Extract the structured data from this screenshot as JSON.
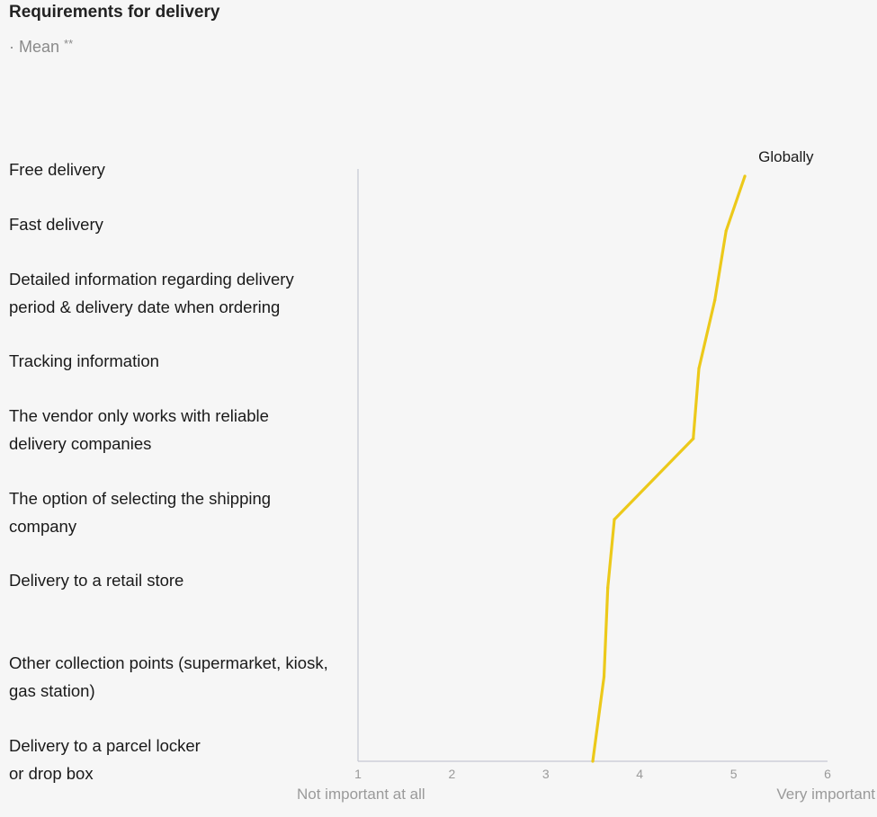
{
  "chart_data": {
    "type": "line",
    "title": "Requirements for delivery",
    "subtitle": "· Mean",
    "subtitle_note": "**",
    "categories": [
      [
        "Free delivery"
      ],
      [
        "Fast delivery"
      ],
      [
        "Detailed information regarding delivery",
        "period & delivery date when ordering"
      ],
      [
        "Tracking information"
      ],
      [
        "The vendor only works with reliable",
        "delivery companies"
      ],
      [
        "The option of selecting the shipping",
        "company"
      ],
      [
        "Delivery to a retail store"
      ],
      [
        "Other collection points (supermarket, kiosk,",
        "gas station)"
      ],
      [
        "Delivery to a parcel locker",
        "or drop box"
      ]
    ],
    "series": [
      {
        "name": "Globally",
        "color": "#ecc91a",
        "values": [
          5.12,
          4.92,
          4.8,
          4.63,
          4.57,
          3.73,
          3.66,
          3.62,
          3.5
        ]
      }
    ],
    "xlim": [
      1,
      6
    ],
    "x_ticks": [
      "1",
      "2",
      "3",
      "4",
      "5",
      "6"
    ],
    "x_min_label": "Not important at all",
    "x_max_label": "Very important",
    "axis_color": "#c5c8d2",
    "grid": false
  }
}
